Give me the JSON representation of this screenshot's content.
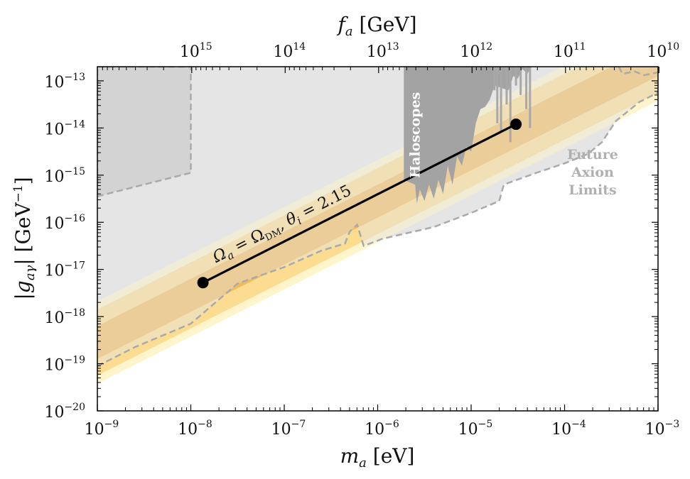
{
  "chart_data": {
    "type": "line",
    "title": "",
    "xlabel": {
      "main": "m",
      "sub": "a",
      "unit": " [eV]"
    },
    "ylabel": {
      "main": "|g",
      "sub": "aγ",
      "post": "|",
      "unit": " [GeV",
      "unit_exp": "−1",
      "unit_close": "]"
    },
    "top_xlabel": {
      "main": "f",
      "sub": "a",
      "unit": " [GeV]"
    },
    "x_log_range": [
      -9,
      -3
    ],
    "y_log_range": [
      -20,
      -12.7
    ],
    "x_ticks": [
      {
        "exp": -9,
        "base": "10",
        "sup": "−9"
      },
      {
        "exp": -8,
        "base": "10",
        "sup": "−8"
      },
      {
        "exp": -7,
        "base": "10",
        "sup": "−7"
      },
      {
        "exp": -6,
        "base": "10",
        "sup": "−6"
      },
      {
        "exp": -5,
        "base": "10",
        "sup": "−5"
      },
      {
        "exp": -4,
        "base": "10",
        "sup": "−4"
      },
      {
        "exp": -3,
        "base": "10",
        "sup": "−3"
      }
    ],
    "y_ticks": [
      {
        "exp": -20,
        "base": "10",
        "sup": "−20"
      },
      {
        "exp": -19,
        "base": "10",
        "sup": "−19"
      },
      {
        "exp": -18,
        "base": "10",
        "sup": "−18"
      },
      {
        "exp": -17,
        "base": "10",
        "sup": "−17"
      },
      {
        "exp": -16,
        "base": "10",
        "sup": "−16"
      },
      {
        "exp": -15,
        "base": "10",
        "sup": "−15"
      },
      {
        "exp": -14,
        "base": "10",
        "sup": "−14"
      },
      {
        "exp": -13,
        "base": "10",
        "sup": "−13"
      }
    ],
    "top_ticks": [
      {
        "x_log": -7.99,
        "base": "10",
        "sup": "15"
      },
      {
        "x_log": -6.99,
        "base": "10",
        "sup": "14"
      },
      {
        "x_log": -5.99,
        "base": "10",
        "sup": "13"
      },
      {
        "x_log": -4.99,
        "base": "10",
        "sup": "12"
      },
      {
        "x_log": -3.99,
        "base": "10",
        "sup": "11"
      },
      {
        "x_log": -2.99,
        "base": "10",
        "sup": "10"
      }
    ],
    "qcd_band": {
      "slope": 1,
      "intercept_at_xlog_minus9": -18.55,
      "core_half_width": 0.35,
      "outer_half_width": 0.7
    },
    "dm_line": {
      "label_main": "Ω",
      "label_sub1": "a",
      "label_eq1": " = Ω",
      "label_sub2": "DM",
      "label_comma": ", θ",
      "label_sub3": "i",
      "label_value": " = 2.15",
      "points": [
        {
          "x_log": -7.87,
          "y_log": -17.28
        },
        {
          "x_log": -4.52,
          "y_log": -13.92
        }
      ]
    },
    "haloscopes": {
      "label": "Haloscopes",
      "x_log_range": [
        -5.72,
        -4.75
      ],
      "y_log_top": -12.7
    },
    "future_limits": {
      "label_lines": [
        "Future",
        "Axion",
        "Limits"
      ]
    }
  }
}
